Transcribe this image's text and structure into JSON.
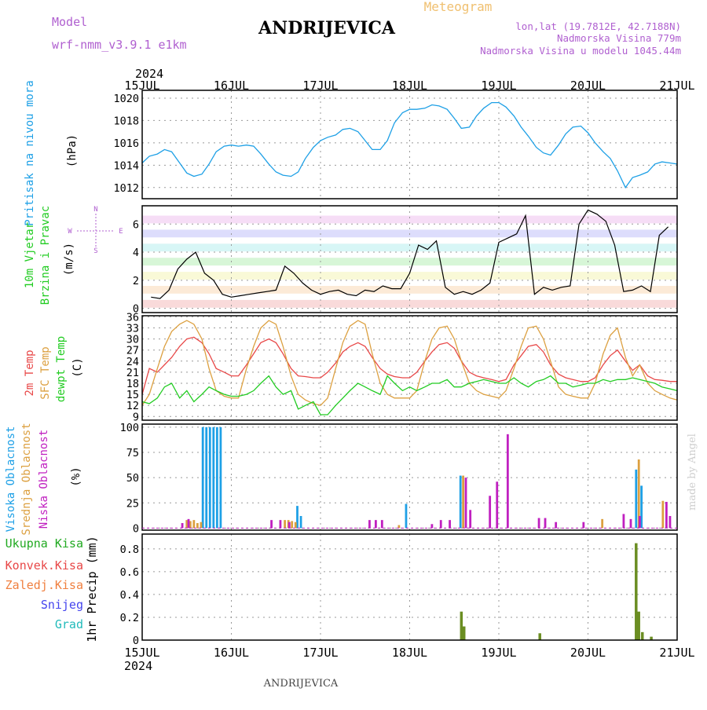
{
  "header": {
    "model_label": "Model",
    "model_name": "wrf-nmm_v3.9.1 e1km",
    "station_title": "ANDRIJEVICA",
    "product": "Meteogram",
    "lonlat": "lon,lat (19.7812E, 42.7188N)",
    "elevation": "Nadmorska Visina 779m",
    "model_elevation": "Nadmorska Visina u modelu 1045.44m",
    "year": "2024",
    "footer_station": "ANDRIJEVICA",
    "credit": "made by Angel"
  },
  "colors": {
    "pressure": "#1ea0e6",
    "temp2m": "#e84848",
    "sfc": "#dca040",
    "dewpt": "#22cc22",
    "high": "#1ea0e6",
    "mid": "#dca040",
    "low": "#c020c0",
    "precip": "#6b8e23",
    "grid": "#999999"
  },
  "chart_data": [
    {
      "type": "line",
      "ylabels": [
        "Pritisak na nivou mora",
        "(hPa)"
      ],
      "x_ticks": [
        "15JUL",
        "16JUL",
        "17JUL",
        "18JUL",
        "19JUL",
        "20JUL",
        "21JUL"
      ],
      "ylim": [
        1011,
        1020.7
      ],
      "y_ticks": [
        1012,
        1014,
        1016,
        1018,
        1020
      ],
      "grid": true,
      "series": [
        {
          "key": "pressure",
          "x": [
            0,
            0.08,
            0.17,
            0.25,
            0.33,
            0.42,
            0.5,
            0.58,
            0.67,
            0.75,
            0.83,
            0.92,
            1,
            1.08,
            1.17,
            1.25,
            1.33,
            1.42,
            1.5,
            1.58,
            1.67,
            1.75,
            1.83,
            1.92,
            2,
            2.08,
            2.17,
            2.25,
            2.33,
            2.42,
            2.5,
            2.58,
            2.67,
            2.75,
            2.83,
            2.92,
            3,
            3.08,
            3.17,
            3.25,
            3.33,
            3.42,
            3.5,
            3.58,
            3.67,
            3.75,
            3.83,
            3.92,
            4,
            4.08,
            4.17,
            4.25,
            4.33,
            4.42,
            4.5,
            4.58,
            4.67,
            4.75,
            4.83,
            4.92,
            5,
            5.08,
            5.17,
            5.25,
            5.33,
            5.42,
            5.5,
            5.58,
            5.67,
            5.75,
            5.83,
            5.92,
            6
          ],
          "y": [
            1014.2,
            1014.8,
            1015.0,
            1015.4,
            1015.2,
            1014.2,
            1013.3,
            1013.0,
            1013.2,
            1014.1,
            1015.2,
            1015.7,
            1015.8,
            1015.7,
            1015.8,
            1015.7,
            1015.0,
            1014.1,
            1013.4,
            1013.1,
            1013.0,
            1013.4,
            1014.6,
            1015.6,
            1016.2,
            1016.5,
            1016.7,
            1017.2,
            1017.3,
            1017.0,
            1016.2,
            1015.4,
            1015.4,
            1016.2,
            1017.8,
            1018.7,
            1019.0,
            1019.0,
            1019.1,
            1019.4,
            1019.3,
            1019.0,
            1018.2,
            1017.3,
            1017.4,
            1018.4,
            1019.1,
            1019.6,
            1019.6,
            1019.2,
            1018.4,
            1017.4,
            1016.6,
            1015.6,
            1015.1,
            1014.9,
            1015.8,
            1016.8,
            1017.4,
            1017.5,
            1016.9,
            1016.0,
            1015.2,
            1014.6,
            1013.5,
            1012.0,
            1012.9,
            1013.1,
            1013.4,
            1014.1,
            1014.3,
            1014.2,
            1014.1
          ]
        }
      ]
    },
    {
      "type": "line",
      "ylabels": [
        "10m Vjetar",
        "Brzina i Pravac",
        "(m/s)"
      ],
      "compass": [
        "N",
        "W",
        "E",
        "S"
      ],
      "ylim": [
        -0.3,
        7.3
      ],
      "y_ticks": [
        0,
        2,
        4,
        6
      ],
      "grid": true,
      "series": [
        {
          "key": "wind_speed",
          "x": [
            0.1,
            0.2,
            0.3,
            0.4,
            0.5,
            0.6,
            0.7,
            0.8,
            0.9,
            1,
            1.1,
            1.2,
            1.3,
            1.4,
            1.5,
            1.6,
            1.7,
            1.8,
            1.9,
            2,
            2.1,
            2.2,
            2.3,
            2.4,
            2.5,
            2.6,
            2.7,
            2.8,
            2.9,
            3,
            3.1,
            3.2,
            3.3,
            3.4,
            3.5,
            3.6,
            3.7,
            3.8,
            3.9,
            4,
            4.1,
            4.2,
            4.3,
            4.4,
            4.5,
            4.6,
            4.7,
            4.8,
            4.9,
            5,
            5.1,
            5.2,
            5.3,
            5.4,
            5.5,
            5.6,
            5.7,
            5.8,
            5.9
          ],
          "y": [
            0.8,
            0.7,
            1.3,
            2.8,
            3.5,
            4.0,
            2.5,
            2.0,
            1.0,
            0.8,
            0.9,
            1.0,
            1.1,
            1.2,
            1.3,
            3.0,
            2.5,
            1.8,
            1.3,
            1.0,
            1.2,
            1.3,
            1.0,
            0.9,
            1.3,
            1.2,
            1.6,
            1.4,
            1.4,
            2.5,
            4.5,
            4.2,
            4.8,
            1.5,
            1.0,
            1.2,
            1.0,
            1.3,
            1.8,
            4.7,
            5.0,
            5.3,
            6.6,
            1.0,
            1.5,
            1.3,
            1.5,
            1.6,
            6.0,
            7.0,
            6.7,
            6.2,
            4.5,
            1.2,
            1.3,
            1.6,
            1.2,
            5.2,
            5.8
          ]
        }
      ]
    },
    {
      "type": "line",
      "ylabels": [
        "2m Temp",
        "SFC Temp",
        "dewpt Temp",
        "(C)"
      ],
      "ylim": [
        8,
        36.3
      ],
      "y_ticks": [
        9,
        12,
        15,
        18,
        21,
        24,
        27,
        30,
        33,
        36
      ],
      "grid": true,
      "series": [
        {
          "key": "temp2m",
          "x": [
            0,
            0.08,
            0.17,
            0.25,
            0.33,
            0.42,
            0.5,
            0.58,
            0.67,
            0.75,
            0.83,
            0.92,
            1,
            1.08,
            1.17,
            1.25,
            1.33,
            1.42,
            1.5,
            1.58,
            1.67,
            1.75,
            1.83,
            1.92,
            2,
            2.08,
            2.17,
            2.25,
            2.33,
            2.42,
            2.5,
            2.58,
            2.67,
            2.75,
            2.83,
            2.92,
            3,
            3.08,
            3.17,
            3.25,
            3.33,
            3.42,
            3.5,
            3.58,
            3.67,
            3.75,
            3.83,
            3.92,
            4,
            4.08,
            4.17,
            4.25,
            4.33,
            4.42,
            4.5,
            4.58,
            4.67,
            4.75,
            4.83,
            4.92,
            5,
            5.08,
            5.17,
            5.25,
            5.33,
            5.42,
            5.5,
            5.58,
            5.67,
            5.75,
            5.83,
            5.92,
            6
          ],
          "y": [
            15,
            22,
            21,
            23,
            25,
            28,
            30,
            30.5,
            29,
            26,
            22,
            21,
            20,
            20,
            23,
            26,
            29,
            30,
            29,
            26,
            22,
            20,
            19.8,
            19.5,
            19.5,
            21,
            23.5,
            26.5,
            28,
            29,
            28,
            25,
            22,
            20.5,
            19.8,
            19.5,
            19.5,
            21,
            24,
            26.5,
            28.5,
            29,
            27.5,
            24,
            21,
            20,
            19.5,
            19,
            18.5,
            19,
            23,
            25.5,
            28,
            28.5,
            26.5,
            23,
            20.5,
            19.5,
            19,
            18.5,
            18.5,
            19.5,
            23,
            25.5,
            27,
            24,
            21.5,
            23,
            20,
            19,
            18.8,
            18.5,
            18.5
          ]
        },
        {
          "key": "sfc",
          "x": [
            0,
            0.08,
            0.17,
            0.25,
            0.33,
            0.42,
            0.5,
            0.58,
            0.67,
            0.75,
            0.83,
            0.92,
            1,
            1.08,
            1.17,
            1.25,
            1.33,
            1.42,
            1.5,
            1.58,
            1.67,
            1.75,
            1.83,
            1.92,
            2,
            2.08,
            2.17,
            2.25,
            2.33,
            2.42,
            2.5,
            2.58,
            2.67,
            2.75,
            2.83,
            2.92,
            3,
            3.08,
            3.17,
            3.25,
            3.33,
            3.42,
            3.5,
            3.58,
            3.67,
            3.75,
            3.83,
            3.92,
            4,
            4.08,
            4.17,
            4.25,
            4.33,
            4.42,
            4.5,
            4.58,
            4.67,
            4.75,
            4.83,
            4.92,
            5,
            5.08,
            5.17,
            5.25,
            5.33,
            5.42,
            5.5,
            5.58,
            5.67,
            5.75,
            5.83,
            5.92,
            6
          ],
          "y": [
            12,
            15,
            22,
            28,
            32,
            34,
            35,
            34,
            30,
            22,
            16,
            14.5,
            14,
            14,
            22,
            28,
            33,
            35,
            34,
            28,
            20,
            15,
            13.5,
            12.5,
            12,
            14,
            22,
            29,
            33.5,
            35,
            34,
            26,
            18,
            15,
            14,
            14,
            14,
            16,
            24,
            30,
            33,
            33.5,
            30,
            24,
            18,
            16,
            15,
            14.5,
            14,
            16,
            22,
            28,
            33,
            33.5,
            30,
            24,
            17,
            15,
            14.5,
            14,
            14,
            18,
            26,
            31,
            33,
            25,
            20,
            23,
            18,
            16,
            15,
            14,
            13.5
          ]
        },
        {
          "key": "dewpt",
          "x": [
            0,
            0.08,
            0.17,
            0.25,
            0.33,
            0.42,
            0.5,
            0.58,
            0.67,
            0.75,
            0.83,
            0.92,
            1,
            1.08,
            1.17,
            1.25,
            1.33,
            1.42,
            1.5,
            1.58,
            1.67,
            1.75,
            1.83,
            1.92,
            2,
            2.08,
            2.17,
            2.25,
            2.33,
            2.42,
            2.5,
            2.58,
            2.67,
            2.75,
            2.83,
            2.92,
            3,
            3.08,
            3.17,
            3.25,
            3.33,
            3.42,
            3.5,
            3.58,
            3.67,
            3.75,
            3.83,
            3.92,
            4,
            4.08,
            4.17,
            4.25,
            4.33,
            4.42,
            4.5,
            4.58,
            4.67,
            4.75,
            4.83,
            4.92,
            5,
            5.08,
            5.17,
            5.25,
            5.33,
            5.42,
            5.5,
            5.58,
            5.67,
            5.75,
            5.83,
            5.92,
            6
          ],
          "y": [
            13,
            12.5,
            14,
            17,
            18,
            14,
            16,
            13,
            15,
            17,
            16,
            15,
            14.5,
            14.5,
            15,
            16,
            18,
            20,
            17,
            15,
            16,
            11,
            12,
            13,
            9.5,
            9.5,
            12,
            14,
            16,
            18,
            17,
            16,
            15,
            20,
            18,
            16,
            17,
            16,
            17,
            18,
            18,
            19,
            17,
            17,
            18,
            18.5,
            19,
            18.5,
            18,
            18,
            19.5,
            18,
            17,
            18.5,
            19,
            20,
            18,
            18,
            17,
            17.5,
            18,
            18,
            19,
            18.5,
            19,
            19,
            19.5,
            19,
            18.5,
            18,
            17,
            16.5,
            16
          ]
        }
      ]
    },
    {
      "type": "bar",
      "ylabels": [
        "Visoka Oblacnost",
        "Srednja Oblacnost",
        "Niska Oblacnost",
        "(%)"
      ],
      "ylim": [
        -2,
        103
      ],
      "y_ticks": [
        0,
        25,
        50,
        75,
        100
      ],
      "grid": true,
      "series": [
        {
          "key": "high",
          "x": [
            0.68,
            0.72,
            0.76,
            0.8,
            0.84,
            0.88,
            1.74,
            1.78,
            2.96,
            3.57,
            5.54,
            5.6
          ],
          "y": [
            100,
            100,
            100,
            100,
            100,
            100,
            22,
            12,
            24,
            52,
            58,
            42
          ]
        },
        {
          "key": "mid",
          "x": [
            0.5,
            0.54,
            0.58,
            0.62,
            0.66,
            1.6,
            1.64,
            1.68,
            1.72,
            2.88,
            3.6,
            5.16,
            5.57,
            5.84
          ],
          "y": [
            8,
            7,
            8,
            5,
            6,
            8,
            8,
            7,
            6,
            3,
            52,
            9,
            68,
            27
          ]
        },
        {
          "key": "low",
          "x": [
            0.45,
            0.52,
            1.45,
            1.55,
            1.65,
            2.55,
            2.62,
            2.69,
            3.25,
            3.35,
            3.45,
            3.63,
            3.68,
            3.9,
            3.98,
            4.1,
            4.45,
            4.52,
            4.64,
            4.95,
            5.4,
            5.48,
            5.58,
            5.88,
            5.92
          ],
          "y": [
            5,
            9,
            8,
            8,
            6,
            8,
            8,
            8,
            4,
            8,
            8,
            50,
            18,
            32,
            46,
            93,
            10,
            10,
            6,
            6,
            14,
            9,
            12,
            26,
            12
          ]
        }
      ]
    },
    {
      "type": "bar",
      "ylabels": [
        "Ukupna Kisa",
        "Konvek.Kisa",
        "Zaledj.Kisa",
        "Snijeg",
        "Grad",
        "1hr Precip (mm)"
      ],
      "ylim": [
        0,
        0.93
      ],
      "y_ticks": [
        0,
        0.2,
        0.4,
        0.6,
        0.8
      ],
      "grid": true,
      "series": [
        {
          "key": "precip",
          "x": [
            3.58,
            3.61,
            3.65,
            4.46,
            5.54,
            5.57,
            5.61,
            5.71
          ],
          "y": [
            0.25,
            0.12,
            0.0,
            0.06,
            0.85,
            0.25,
            0.07,
            0.03
          ]
        }
      ]
    }
  ]
}
